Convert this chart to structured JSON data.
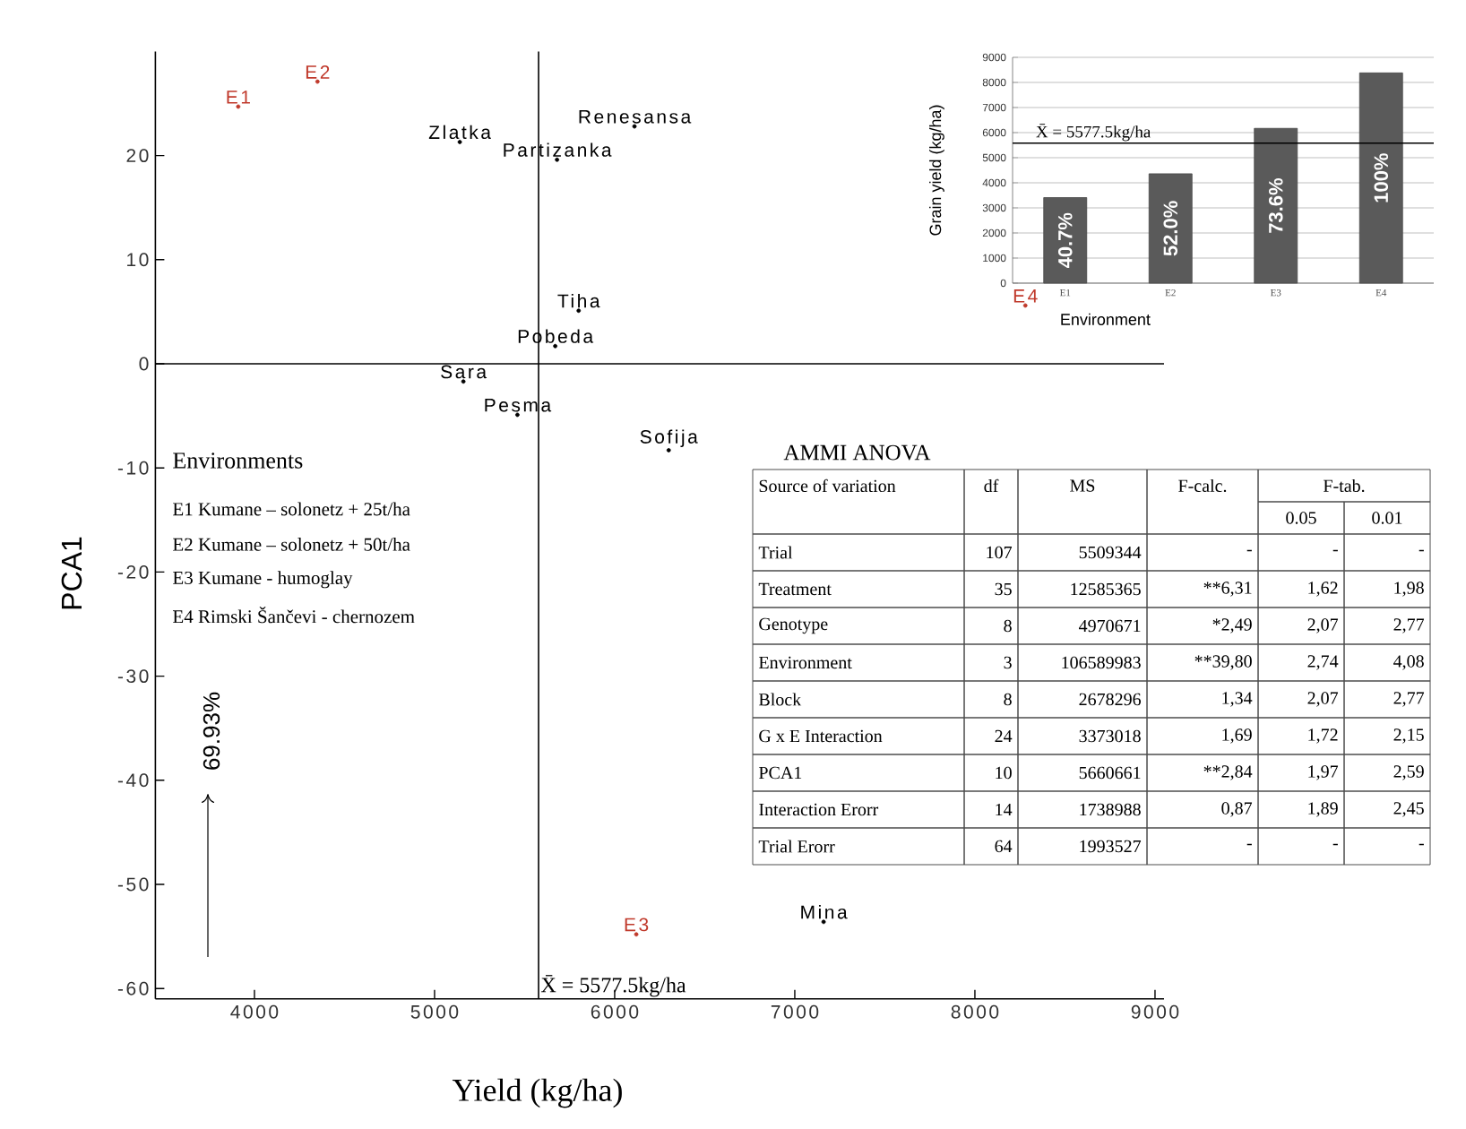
{
  "chart_data": [
    {
      "type": "scatter",
      "xlabel": "Yield (kg/ha)",
      "ylabel": "PCA1",
      "xlim": [
        3450,
        9050
      ],
      "ylim": [
        -61,
        30
      ],
      "xticks": [
        4000,
        5000,
        6000,
        7000,
        8000,
        9000
      ],
      "yticks": [
        20,
        10,
        0,
        -10,
        -20,
        -30,
        -40,
        -50,
        -60
      ],
      "marker": "circle",
      "series": [
        {
          "color": "#000000",
          "x": [
            5140,
            5680,
            6110,
            5800,
            5670,
            5160,
            5460,
            6300,
            7160
          ],
          "values": [
            21.3,
            19.6,
            22.8,
            5.1,
            1.7,
            -1.7,
            -4.9,
            -8.3,
            -53.6
          ]
        },
        {
          "color": "#c0392b",
          "x": [
            3910,
            4350,
            6120,
            8280
          ],
          "values": [
            24.7,
            27.1,
            -54.8,
            5.6
          ]
        }
      ],
      "annotations": [
        {
          "text": "Zlatka",
          "x": 5140,
          "y": 21.3
        },
        {
          "text": "Partizanka",
          "x": 5680,
          "y": 19.6
        },
        {
          "text": "Renesansa",
          "x": 6110,
          "y": 22.8
        },
        {
          "text": "Tiha",
          "x": 5800,
          "y": 5.1
        },
        {
          "text": "Pobeda",
          "x": 5670,
          "y": 1.7
        },
        {
          "text": "Sara",
          "x": 5160,
          "y": -1.7
        },
        {
          "text": "Pesma",
          "x": 5460,
          "y": -4.9
        },
        {
          "text": "Sofija",
          "x": 6300,
          "y": -8.3
        },
        {
          "text": "Mina",
          "x": 7160,
          "y": -53.6
        },
        {
          "text": "E1",
          "x": 3910,
          "y": 24.7
        },
        {
          "text": "E2",
          "x": 4350,
          "y": 27.1
        },
        {
          "text": "E3",
          "x": 6120,
          "y": -54.8
        },
        {
          "text": "E4",
          "x": 8280,
          "y": 5.6
        },
        "Environments",
        "E1 Kumane – solonetz + 25t/ha",
        "E2 Kumane – solonetz + 50t/ha",
        "E3 Kumane - humoglay",
        "E4 Rimski Šančevi - chernozem",
        "69.93%"
      ],
      "ref_lines": [
        {
          "axis": "x",
          "value": 5577.5,
          "label": "X̄ = 5577.5kg/ha"
        },
        {
          "axis": "y",
          "value": 0
        }
      ]
    },
    {
      "type": "bar",
      "categories": [
        "E1",
        "E2",
        "E3",
        "E4"
      ],
      "values": [
        3410,
        4360,
        6170,
        8380
      ],
      "color": "#5a5a5a",
      "annotations": [
        "40.7%",
        "52.0%",
        "73.6%",
        "100%"
      ],
      "ylim": [
        0,
        9000
      ],
      "yticks": [
        0,
        1000,
        2000,
        3000,
        4000,
        5000,
        6000,
        7000,
        8000,
        9000
      ],
      "grid": "y",
      "xlabel": "Environment",
      "ylabel": "Grain yield (kg/ha)",
      "ref_lines": [
        {
          "axis": "y",
          "value": 5577.5,
          "label": "X̄ = 5577.5kg/ha"
        }
      ]
    },
    {
      "type": "other",
      "title": "AMMI ANOVA",
      "ylabel": "Source of variation",
      "x2label": "F-tab.",
      "categories": [
        "df",
        "MS",
        "F-calc.",
        "0.05",
        "0.01"
      ],
      "y_categories": [
        "Trial",
        "Treatment",
        "Genotype",
        "Environment",
        "Block",
        "G x E Interaction",
        "PCA1",
        "Interaction Erorr",
        "Trial Erorr"
      ],
      "cell_labels": [
        [
          "107",
          "5509344",
          "-",
          "-",
          "-"
        ],
        [
          "35",
          "12585365",
          "**6,31",
          "1,62",
          "1,98"
        ],
        [
          "8",
          "4970671",
          "*2,49",
          "2,07",
          "2,77"
        ],
        [
          "3",
          "106589983",
          "**39,80",
          "2,74",
          "4,08"
        ],
        [
          "8",
          "2678296",
          "1,34",
          "2,07",
          "2,77"
        ],
        [
          "24",
          "3373018",
          "1,69",
          "1,72",
          "2,15"
        ],
        [
          "10",
          "5660661",
          "**2,84",
          "1,97",
          "2,59"
        ],
        [
          "14",
          "1738988",
          "0,87",
          "1,89",
          "2,45"
        ],
        [
          "64",
          "1993527",
          "-",
          "-",
          "-"
        ]
      ]
    }
  ]
}
